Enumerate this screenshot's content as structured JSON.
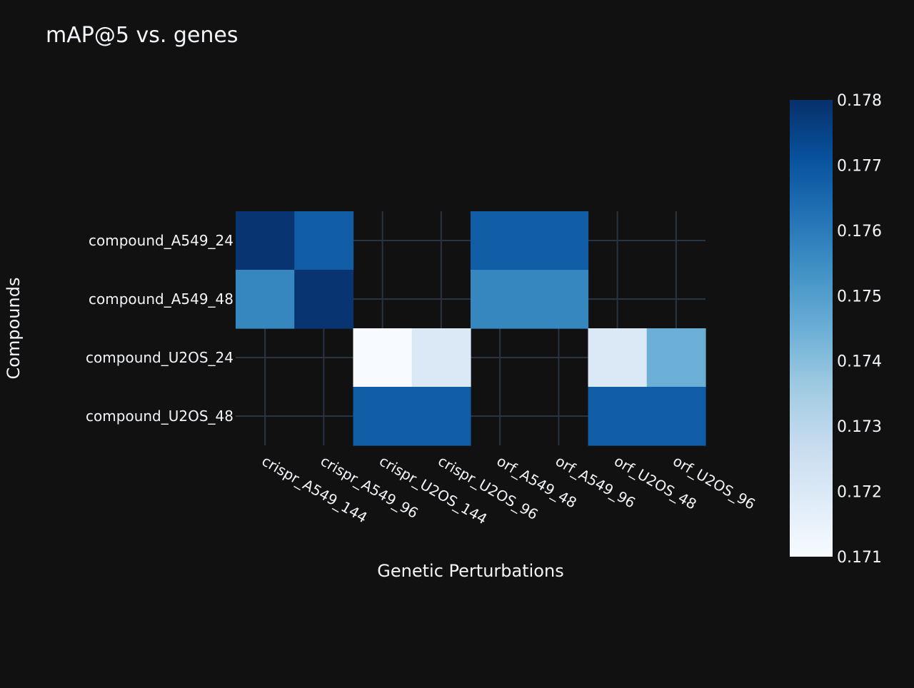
{
  "chart_data": {
    "type": "heatmap",
    "title": "mAP@5 vs. genes",
    "xlabel": "Genetic Perturbations",
    "ylabel": "Compounds",
    "x_categories": [
      "crispr_A549_144",
      "crispr_A549_96",
      "crispr_U2OS_144",
      "crispr_U2OS_96",
      "orf_A549_48",
      "orf_A549_96",
      "orf_U2OS_48",
      "orf_U2OS_96"
    ],
    "y_categories": [
      "compound_A549_24",
      "compound_A549_48",
      "compound_U2OS_24",
      "compound_U2OS_48"
    ],
    "z": [
      [
        0.1779,
        0.1768,
        null,
        null,
        0.1768,
        0.1768,
        null,
        null
      ],
      [
        0.1757,
        0.1779,
        null,
        null,
        0.1757,
        0.1757,
        null,
        null
      ],
      [
        null,
        null,
        0.171,
        0.172,
        null,
        null,
        0.172,
        0.1745
      ],
      [
        null,
        null,
        0.1768,
        0.1768,
        null,
        null,
        0.1768,
        0.1768
      ]
    ],
    "colorscale": "Blues",
    "zmin": 0.171,
    "zmax": 0.178,
    "colorbar_ticks": [
      "0.178",
      "0.177",
      "0.176",
      "0.175",
      "0.174",
      "0.173",
      "0.172",
      "0.171"
    ],
    "colors": {
      "background": "#111111",
      "gridline": "#283442",
      "text": "#f2f5fa"
    }
  }
}
